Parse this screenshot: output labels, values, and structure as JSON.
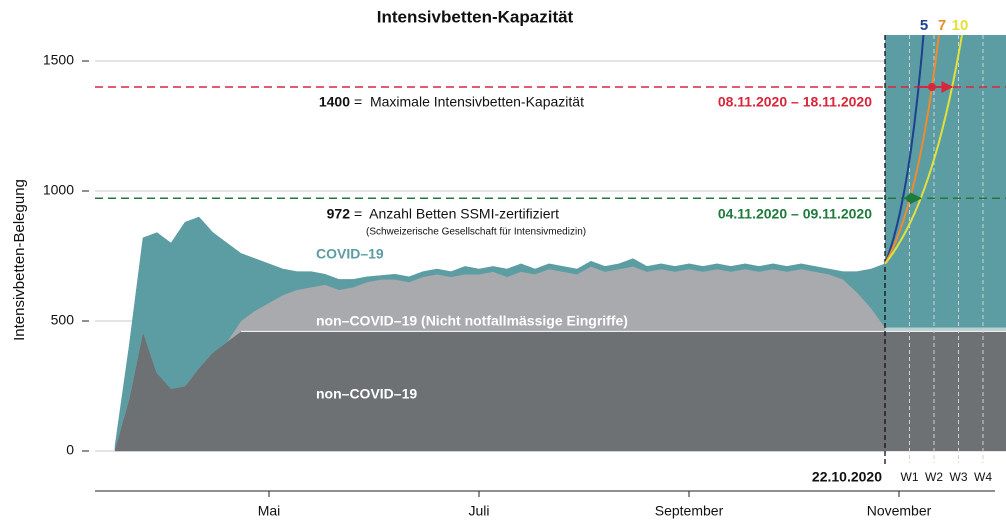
{
  "chart_data": {
    "type": "stacked_area",
    "title": "Intensivbetten-Kapazität",
    "y_label": "Intensivbetten-Belegung",
    "ylim": [
      0,
      1600
    ],
    "yticks": [
      0,
      500,
      1000,
      1500
    ],
    "grid": true,
    "categories": [
      null,
      null,
      null,
      null,
      null,
      null,
      null,
      null,
      null,
      null,
      null,
      "Mai",
      null,
      null,
      null,
      null,
      null,
      null,
      null,
      null,
      null,
      null,
      null,
      null,
      null,
      null,
      "Juli",
      null,
      null,
      null,
      null,
      null,
      null,
      null,
      null,
      null,
      null,
      null,
      null,
      null,
      null,
      "September",
      null,
      null,
      null,
      null,
      null,
      null,
      null,
      null,
      null,
      null,
      null,
      null,
      null,
      null,
      "November"
    ],
    "series": [
      {
        "name": "non–COVID–19",
        "color": "#6e7174",
        "label_color": "#ffffff",
        "values": [
          10,
          200,
          460,
          300,
          240,
          250,
          320,
          380,
          420,
          460,
          460,
          460,
          460,
          460,
          460,
          460,
          460,
          460,
          460,
          460,
          460,
          460,
          460,
          460,
          460,
          460,
          460,
          460,
          460,
          460,
          460,
          460,
          460,
          460,
          460,
          460,
          460,
          460,
          460,
          460,
          460,
          460,
          460,
          460,
          460,
          460,
          460,
          460,
          460,
          460,
          460,
          460,
          460,
          460,
          460,
          460,
          null
        ]
      },
      {
        "name": "non–COVID–19 (Nicht notfallmässige Eingriffe)",
        "color": "#a8aaad",
        "label_color": "#ffffff",
        "values": [
          0,
          0,
          0,
          0,
          0,
          0,
          0,
          0,
          0,
          40,
          80,
          110,
          140,
          160,
          170,
          180,
          160,
          170,
          190,
          200,
          200,
          190,
          210,
          220,
          210,
          220,
          220,
          230,
          210,
          230,
          220,
          240,
          230,
          220,
          250,
          230,
          240,
          250,
          230,
          240,
          230,
          240,
          230,
          240,
          230,
          240,
          230,
          240,
          230,
          240,
          230,
          220,
          200,
          150,
          90,
          15,
          null
        ]
      },
      {
        "name": "COVID–19",
        "color": "#5b9da2",
        "label_color": "#5b9da2",
        "values": [
          10,
          200,
          360,
          540,
          560,
          630,
          580,
          460,
          380,
          260,
          200,
          150,
          100,
          70,
          60,
          40,
          40,
          30,
          20,
          15,
          20,
          20,
          20,
          20,
          20,
          30,
          20,
          20,
          30,
          30,
          20,
          20,
          20,
          20,
          20,
          20,
          20,
          30,
          20,
          20,
          20,
          20,
          20,
          20,
          20,
          20,
          20,
          20,
          20,
          20,
          20,
          20,
          30,
          80,
          150,
          245,
          null
        ]
      }
    ],
    "projection": {
      "start_label": "22.10.2020",
      "weeks": [
        "W1",
        "W2",
        "W3",
        "W4"
      ],
      "curves": [
        {
          "doubling": 5,
          "color": "#1f3f8f"
        },
        {
          "doubling": 7,
          "color": "#ef8a2e"
        },
        {
          "doubling": 10,
          "color": "#e3e03a"
        }
      ]
    },
    "reference_lines": [
      {
        "value": 1400,
        "label": "=  Maximale Intensivbetten-Kapazität",
        "period": "08.11.2020 – 18.11.2020",
        "color": "#d8263a"
      },
      {
        "value": 972,
        "label": "=  Anzahl Betten SSMI-zertifiziert",
        "note": "(Schweizerische Gesellschaft für Intensivmedizin)",
        "period": "04.11.2020 – 09.11.2020",
        "color": "#1f7a3c"
      }
    ]
  }
}
